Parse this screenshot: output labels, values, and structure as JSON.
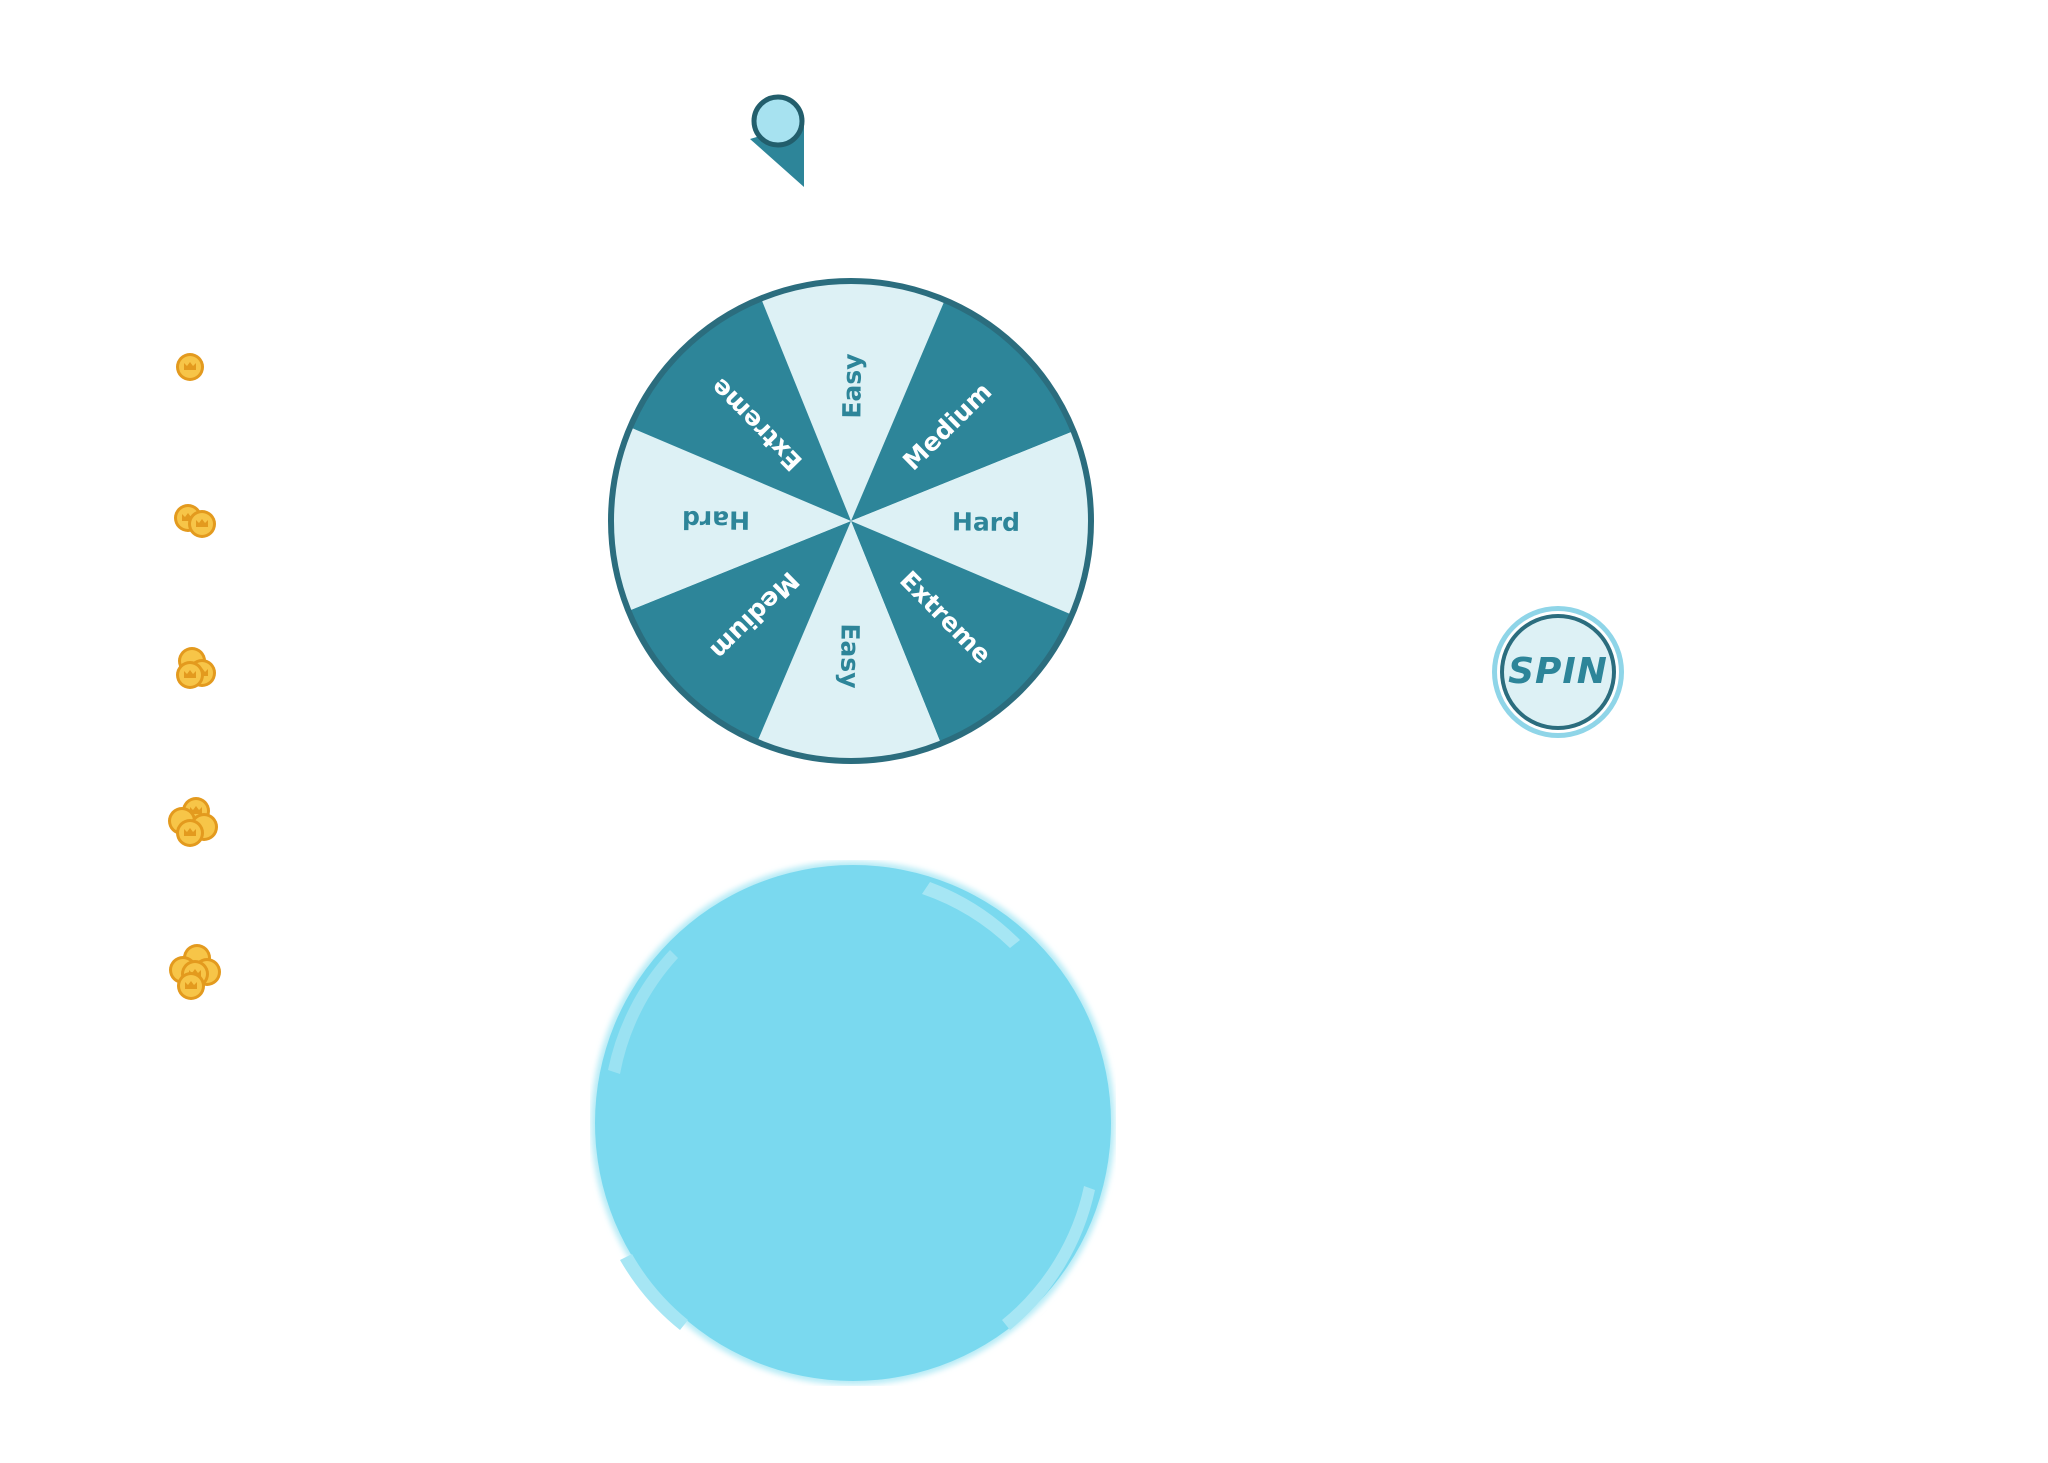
{
  "colors": {
    "dark_segment": "#2d8599",
    "light_segment": "#ddf1f5",
    "wheel_rim": "#2b6d7e",
    "bubble_fill": "#7ad9ef",
    "coin_gold": "#f5b533",
    "spin_text": "#2d8599"
  },
  "wheel": {
    "segments": [
      {
        "label": "Easy",
        "shade": "light"
      },
      {
        "label": "Medium",
        "shade": "dark"
      },
      {
        "label": "Hard",
        "shade": "light"
      },
      {
        "label": "Extreme",
        "shade": "dark"
      },
      {
        "label": "Easy",
        "shade": "light"
      },
      {
        "label": "Medium",
        "shade": "dark"
      },
      {
        "label": "Hard",
        "shade": "light"
      },
      {
        "label": "Extreme",
        "shade": "dark"
      }
    ]
  },
  "spin_button": {
    "label": "SPIN"
  },
  "coin_stacks": [
    {
      "coins": 1,
      "icon": "coin-icon"
    },
    {
      "coins": 2,
      "icon": "coin-icon"
    },
    {
      "coins": 3,
      "icon": "coin-icon"
    },
    {
      "coins": 4,
      "icon": "coin-icon"
    },
    {
      "coins": 5,
      "icon": "coin-icon"
    }
  ]
}
